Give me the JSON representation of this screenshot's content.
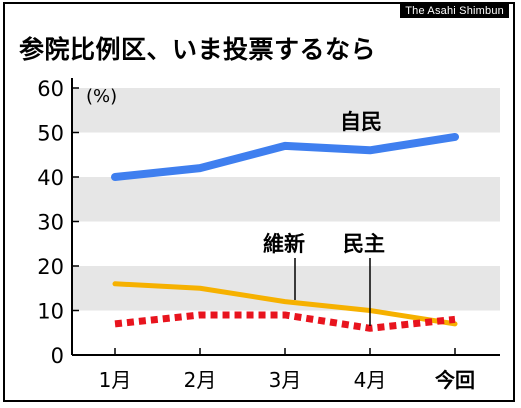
{
  "credit": "The Asahi Shimbun",
  "title": "参院比例区、いま投票するなら",
  "colors": {
    "jimin": "#3f7fef",
    "ishin": "#f6b100",
    "minshu": "#e8141e",
    "band": "#e6e6e6"
  },
  "chart_data": {
    "type": "line",
    "title": "参院比例区、いま投票するなら",
    "unit": "(%)",
    "categories": [
      "1月",
      "2月",
      "3月",
      "4月",
      "今回"
    ],
    "ylim": [
      0,
      60
    ],
    "yticks": [
      0,
      10,
      20,
      30,
      40,
      50,
      60
    ],
    "ytick_labels": [
      "0",
      "10",
      "20",
      "30",
      "40",
      "50",
      "60"
    ],
    "grid": "alternating horizontal bands",
    "series": [
      {
        "name": "自民",
        "values": [
          40,
          42,
          47,
          46,
          49
        ],
        "color": "#3f7fef",
        "style": "solid"
      },
      {
        "name": "維新",
        "values": [
          16,
          15,
          12,
          10,
          7
        ],
        "color": "#f6b100",
        "style": "solid"
      },
      {
        "name": "民主",
        "values": [
          7,
          9,
          9,
          6,
          8
        ],
        "color": "#e8141e",
        "style": "dashed"
      }
    ]
  }
}
